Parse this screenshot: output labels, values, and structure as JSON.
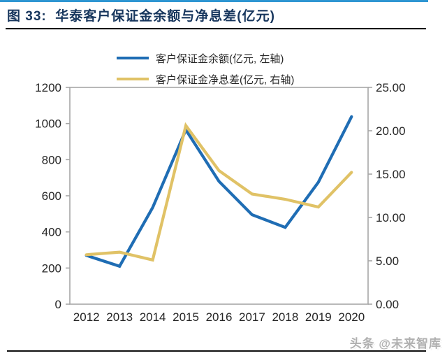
{
  "header": {
    "title": "图 33:  华泰客户保证金余额与净息差(亿元)"
  },
  "legend": [
    {
      "label": "客户保证金余额(亿元, 左轴)"
    },
    {
      "label": "客户保证金净息差(亿元, 右轴)"
    }
  ],
  "watermark": "头条 @未来智库",
  "colors": {
    "top_rule_blue": "#2e96d2",
    "title_navy": "#17365d",
    "series_blue": "#1f6db4",
    "series_gold": "#e0c266",
    "axis_gray": "#a6a6a6",
    "label_dark": "#262626"
  },
  "chart_data": {
    "type": "line",
    "title": "华泰客户保证金余额与净息差(亿元)",
    "categories": [
      "2012",
      "2013",
      "2014",
      "2015",
      "2016",
      "2017",
      "2018",
      "2019",
      "2020"
    ],
    "series": [
      {
        "name": "客户保证金余额(亿元, 左轴)",
        "axis": "left",
        "color": "#1f6db4",
        "values": [
          270,
          210,
          535,
          965,
          680,
          495,
          425,
          675,
          1038
        ]
      },
      {
        "name": "客户保证金净息差(亿元, 右轴)",
        "axis": "right",
        "color": "#e0c266",
        "values": [
          5.7,
          6.0,
          5.1,
          20.6,
          15.4,
          12.7,
          12.1,
          11.2,
          15.2
        ]
      }
    ],
    "left_axis": {
      "min": 0,
      "max": 1200,
      "step": 200,
      "labels": [
        "0",
        "200",
        "400",
        "600",
        "800",
        "1000",
        "1200"
      ]
    },
    "right_axis": {
      "min": 0,
      "max": 25,
      "step": 5,
      "labels": [
        "0.00",
        "5.00",
        "10.00",
        "15.00",
        "20.00",
        "25.00"
      ]
    },
    "xlabel": "",
    "ylabel": "",
    "grid": false,
    "legend_position": "top"
  }
}
